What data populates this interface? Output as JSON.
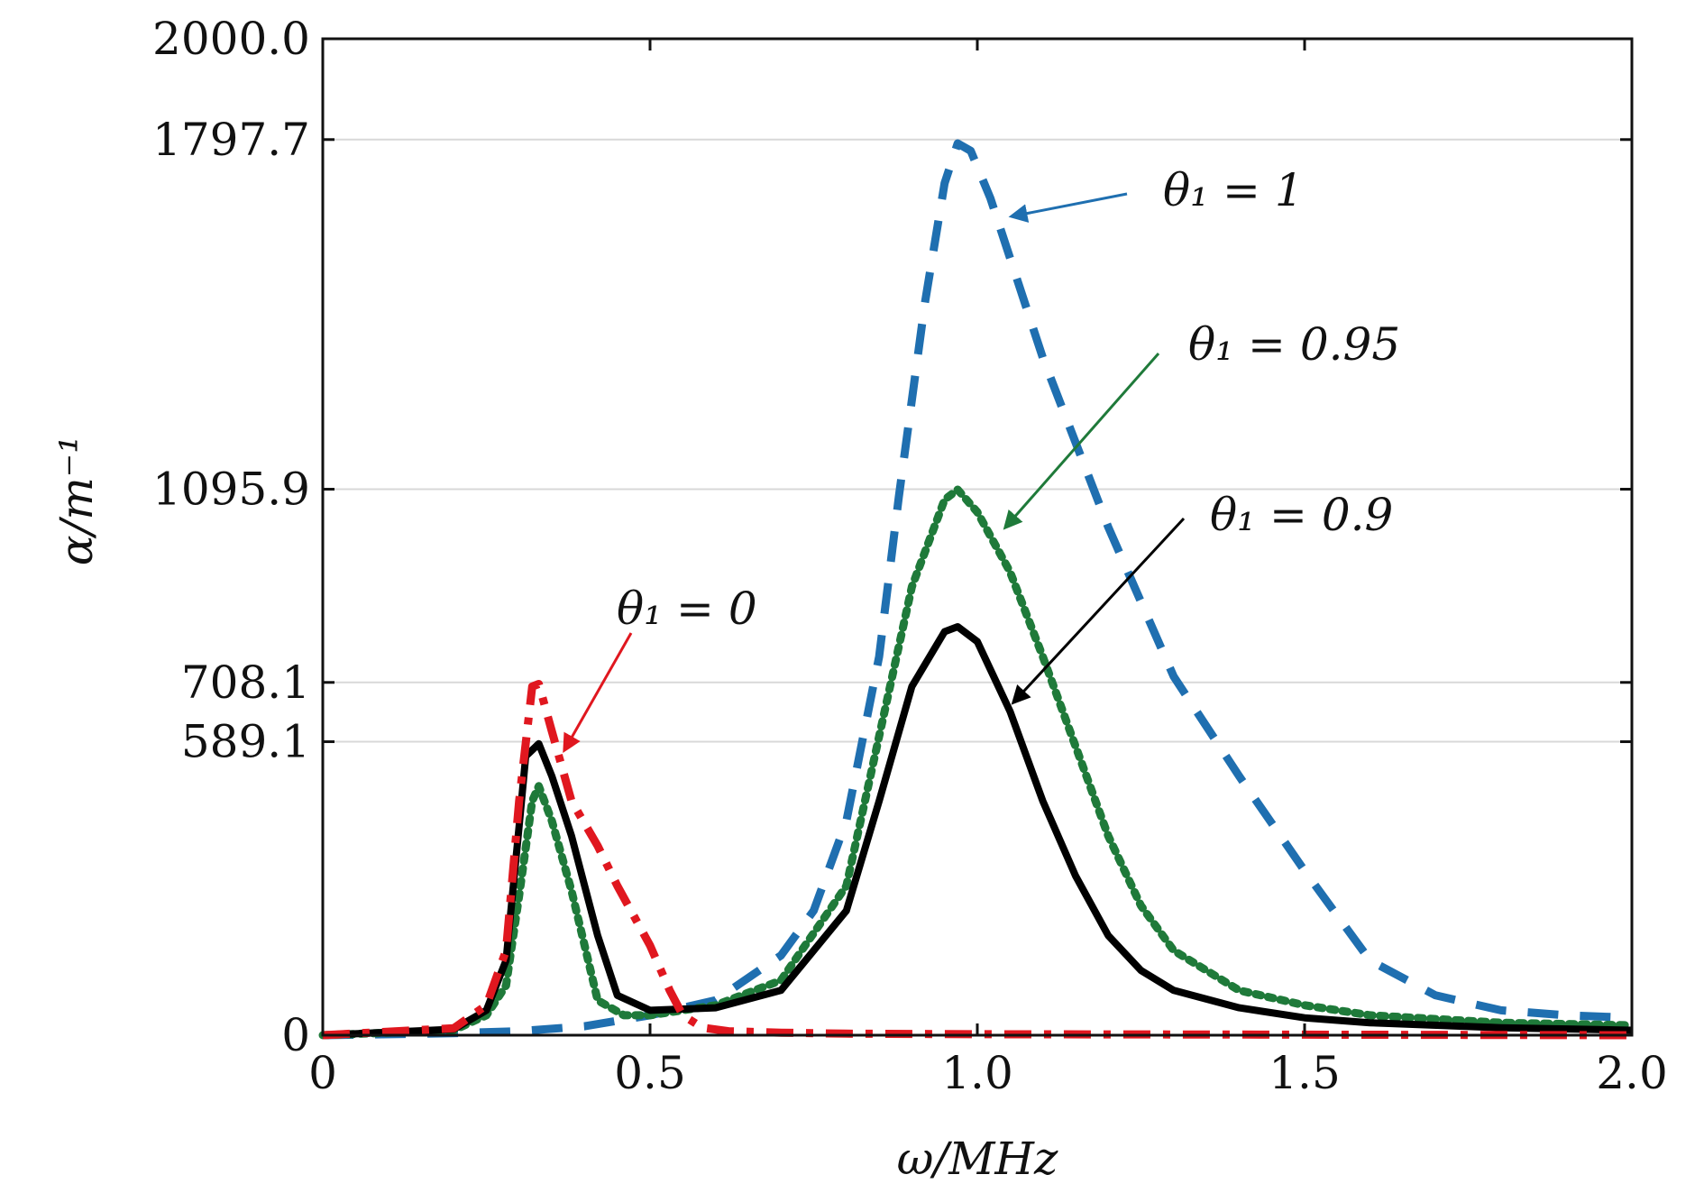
{
  "chart_data": {
    "type": "line",
    "title": "",
    "xlabel": "ω/MHz",
    "ylabel": "α/m⁻¹",
    "xlim": [
      0,
      2.0
    ],
    "ylim": [
      0,
      2000
    ],
    "grid": "y-major",
    "x_ticks": [
      0,
      0.5,
      1.0,
      1.5,
      2.0
    ],
    "x_tick_labels": [
      "0",
      "0.5",
      "1.0",
      "1.5",
      "2.0"
    ],
    "y_ticks": [
      0,
      589.1,
      708.1,
      1095.9,
      1797.7,
      2000.0
    ],
    "y_tick_labels": [
      "0",
      "589.1",
      "708.1",
      "1095.9",
      "1797.7",
      "2000.0"
    ],
    "series": [
      {
        "name": "θ₁ = 1",
        "color": "#1f6fb0",
        "style": "dashed",
        "x": [
          0,
          0.2,
          0.3,
          0.4,
          0.5,
          0.6,
          0.7,
          0.75,
          0.8,
          0.85,
          0.88,
          0.92,
          0.95,
          0.97,
          0.99,
          1.02,
          1.05,
          1.1,
          1.2,
          1.3,
          1.4,
          1.5,
          1.6,
          1.7,
          1.8,
          1.9,
          2.0
        ],
        "values": [
          0,
          4,
          8,
          18,
          40,
          70,
          160,
          250,
          430,
          760,
          1080,
          1470,
          1710,
          1790,
          1775,
          1680,
          1560,
          1360,
          1020,
          720,
          520,
          330,
          150,
          80,
          50,
          40,
          35
        ]
      },
      {
        "name": "θ₁ = 0.95",
        "color": "#1f7a3a",
        "style": "dotted",
        "x": [
          0,
          0.2,
          0.25,
          0.28,
          0.3,
          0.32,
          0.33,
          0.35,
          0.38,
          0.42,
          0.46,
          0.5,
          0.6,
          0.7,
          0.8,
          0.85,
          0.9,
          0.95,
          0.97,
          1.0,
          1.05,
          1.1,
          1.15,
          1.2,
          1.25,
          1.3,
          1.4,
          1.5,
          1.6,
          1.8,
          2.0
        ],
        "values": [
          0,
          10,
          40,
          100,
          280,
          470,
          500,
          430,
          290,
          70,
          40,
          40,
          60,
          110,
          300,
          600,
          900,
          1075,
          1095,
          1050,
          930,
          760,
          580,
          400,
          260,
          170,
          90,
          60,
          40,
          25,
          20
        ]
      },
      {
        "name": "θ₁ = 0.9",
        "color": "#000000",
        "style": "solid",
        "x": [
          0,
          0.2,
          0.25,
          0.28,
          0.3,
          0.31,
          0.33,
          0.35,
          0.38,
          0.42,
          0.45,
          0.5,
          0.6,
          0.7,
          0.8,
          0.85,
          0.9,
          0.95,
          0.97,
          1.0,
          1.05,
          1.1,
          1.15,
          1.2,
          1.25,
          1.3,
          1.4,
          1.5,
          1.6,
          1.8,
          2.0
        ],
        "values": [
          0,
          12,
          50,
          150,
          420,
          560,
          585,
          520,
          400,
          200,
          80,
          50,
          55,
          90,
          250,
          470,
          700,
          810,
          820,
          790,
          650,
          470,
          320,
          200,
          130,
          90,
          55,
          35,
          25,
          15,
          10
        ]
      },
      {
        "name": "θ₁ = 0",
        "color": "#e0171f",
        "style": "dashdot",
        "x": [
          0,
          0.2,
          0.25,
          0.28,
          0.3,
          0.32,
          0.33,
          0.35,
          0.38,
          0.42,
          0.45,
          0.5,
          0.53,
          0.55,
          0.58,
          0.62,
          0.7,
          0.8,
          1.0,
          1.5,
          2.0
        ],
        "values": [
          0,
          14,
          60,
          170,
          470,
          700,
          705,
          610,
          470,
          380,
          300,
          180,
          90,
          40,
          15,
          8,
          5,
          3,
          2,
          1,
          0
        ]
      }
    ],
    "annotations": [
      {
        "text": "θ₁ = 1",
        "target_series": "θ₁ = 1"
      },
      {
        "text": "θ₁ = 0.95",
        "target_series": "θ₁ = 0.95"
      },
      {
        "text": "θ₁ = 0.9",
        "target_series": "θ₁ = 0.9"
      },
      {
        "text": "θ₁ = 0",
        "target_series": "θ₁ = 0"
      }
    ]
  }
}
